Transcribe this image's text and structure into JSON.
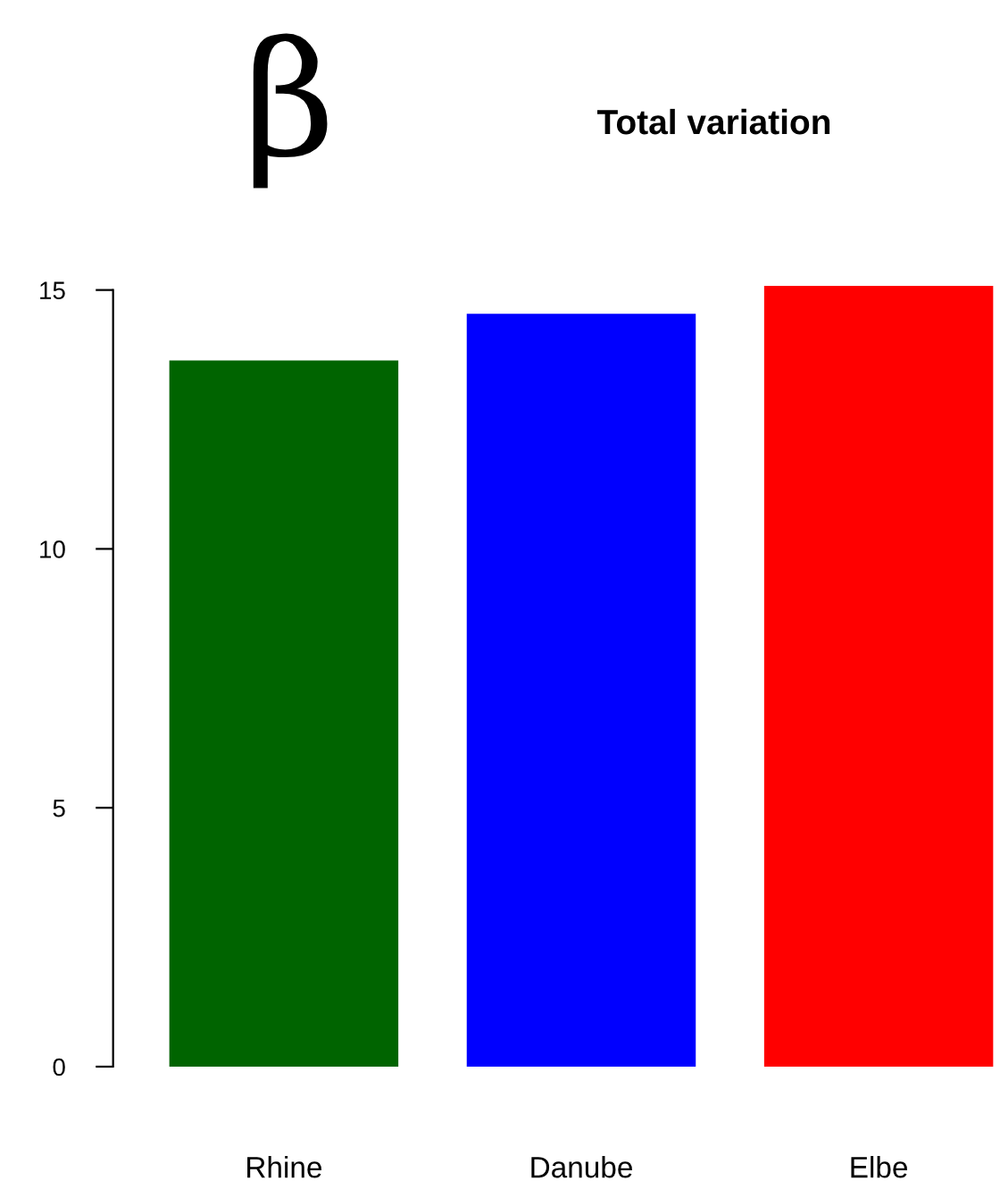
{
  "chart_data": {
    "type": "bar",
    "title": "Total variation",
    "annotations": [
      "β"
    ],
    "categories": [
      "Rhine",
      "Danube",
      "Elbe"
    ],
    "values": [
      13.64,
      14.54,
      15.08
    ],
    "colors": [
      "#006400",
      "#0000ff",
      "#ff0000"
    ],
    "ylim": [
      0,
      15.08
    ],
    "yticks": [
      0,
      5,
      10,
      15
    ],
    "grid": false,
    "legend": false
  }
}
